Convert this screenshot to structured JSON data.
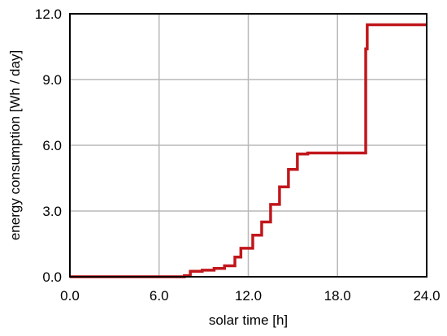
{
  "chart_data": {
    "type": "line",
    "title": "",
    "xlabel": "solar time [h]",
    "ylabel": "energy consumption [Wh / day]",
    "xlim": [
      0,
      24
    ],
    "ylim": [
      0,
      12
    ],
    "xticks": [
      0,
      6,
      12,
      18,
      24
    ],
    "yticks": [
      0,
      3,
      6,
      9,
      12
    ],
    "xtick_labels": [
      "0.0",
      "6.0",
      "12.0",
      "18.0",
      "24.0"
    ],
    "ytick_labels": [
      "0.0",
      "3.0",
      "6.0",
      "9.0",
      "12.0"
    ],
    "grid": true,
    "step": true,
    "series": [
      {
        "color": "#c0171c",
        "x": [
          0,
          7.7,
          8.1,
          8.9,
          9.7,
          10.4,
          11.1,
          11.5,
          12.3,
          12.9,
          13.5,
          14.1,
          14.7,
          15.3,
          16.0,
          19.9,
          20.0,
          20.3,
          24.0
        ],
        "y": [
          0,
          0.05,
          0.25,
          0.3,
          0.38,
          0.5,
          0.9,
          1.3,
          1.9,
          2.5,
          3.3,
          4.1,
          4.9,
          5.6,
          5.65,
          10.4,
          11.5,
          11.5,
          11.5
        ]
      }
    ]
  }
}
